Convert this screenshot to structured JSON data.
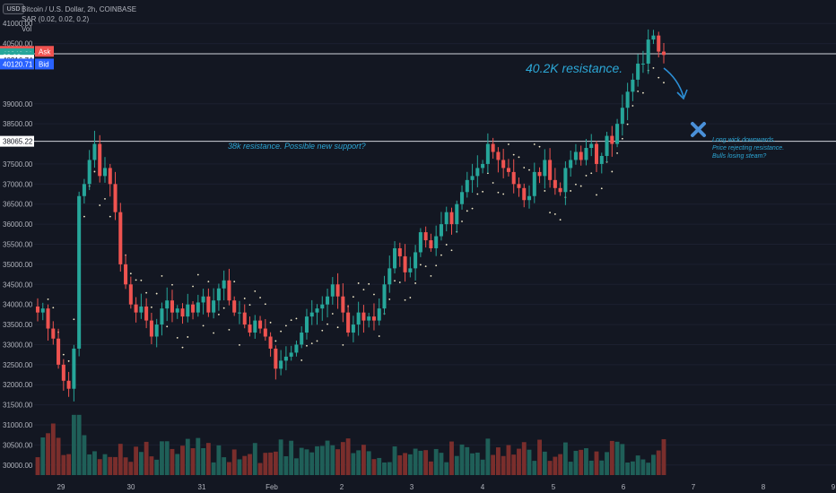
{
  "header": {
    "symbol_line": "Bitcoin / U.S. Dollar, 2h, COINBASE",
    "sar_line": "SAR (0.02, 0.02, 0.2)",
    "vol_line": "Vol",
    "currency_badge": "USD",
    "currency_prefix": "4"
  },
  "colors": {
    "background": "#131722",
    "up": "#26a69a",
    "down": "#ef5350",
    "sar_dots": "#f5eccb",
    "annotation": "#2ca7d6",
    "arrow": "#2c8fd6",
    "hline": "#d1d4dc"
  },
  "price_axis": {
    "ticks": [
      "41000.00",
      "40500.00",
      "39000.00",
      "38500.00",
      "37500.00",
      "37000.00",
      "36500.00",
      "36000.00",
      "35500.00",
      "35000.00",
      "34500.00",
      "34000.00",
      "33500.00",
      "33000.00",
      "32500.00",
      "32000.00",
      "31500.00",
      "31000.00",
      "30500.00",
      "30000.00"
    ],
    "labels": [
      {
        "text": "40306.44",
        "tag": "Ask",
        "color": "#ef5350",
        "price": 40306.44
      },
      {
        "text": "40246.01",
        "tag": "",
        "color": "#26a69a",
        "price": 40246.01
      },
      {
        "text": "23:02",
        "tag": "",
        "color": "#26a69a",
        "price": 40170.0
      },
      {
        "text": "40216.74",
        "tag": "",
        "color": "#ffffff",
        "price": 40085.0
      },
      {
        "text": "40120.71",
        "tag": "Bid",
        "color": "#2962ff",
        "price": 39990.0
      },
      {
        "text": "38065.22",
        "tag": "",
        "color": "#ffffff",
        "price": 38065.22
      }
    ]
  },
  "time_axis": {
    "ticks": [
      "29",
      "30",
      "31",
      "Feb",
      "2",
      "3",
      "4",
      "5",
      "6",
      "7",
      "8",
      "9"
    ]
  },
  "annotations": {
    "resistance_402": "40.2K resistance.",
    "resistance_38k": "38k resistance. Possible new support?",
    "note_line1": "Long wick downwards.",
    "note_line2": "Price rejecting resistance.",
    "note_line3": "Bulls losing steam?"
  },
  "chart_data": {
    "type": "candlestick",
    "symbol": "Bitcoin / U.S. Dollar",
    "interval": "2h",
    "exchange": "COINBASE",
    "ylim": [
      29750,
      41250
    ],
    "volume_scale": [
      29750,
      31250
    ],
    "horizontal_levels": [
      40246.01,
      38065.22
    ],
    "x_ticks": [
      "29",
      "30",
      "31",
      "Feb",
      "2",
      "3",
      "4",
      "5",
      "6",
      "7",
      "8",
      "9"
    ],
    "series": [
      {
        "name": "Price",
        "closes": [
          33800,
          33900,
          33400,
          33150,
          32500,
          32100,
          31900,
          32900,
          36700,
          37000,
          37600,
          38000,
          37200,
          37400,
          37000,
          36300,
          35000,
          34500,
          34000,
          33800,
          33950,
          33600,
          33200,
          33500,
          33900,
          34100,
          33800,
          33900,
          33700,
          34000,
          33800,
          34050,
          34200,
          33800,
          34100,
          34400,
          34600,
          34100,
          33800,
          33800,
          33500,
          33300,
          33600,
          33400,
          33200,
          32900,
          32400,
          32600,
          32700,
          32800,
          33000,
          33300,
          33700,
          33800,
          33900,
          34000,
          34200,
          34500,
          34200,
          33800,
          33300,
          33500,
          33800,
          33600,
          33700,
          33600,
          33900,
          34500,
          34900,
          35400,
          35200,
          34800,
          34900,
          35300,
          35800,
          35600,
          35400,
          35700,
          36000,
          36300,
          36000,
          36500,
          36800,
          37100,
          37200,
          37400,
          37500,
          38000,
          37800,
          37600,
          37400,
          37300,
          37000,
          36900,
          36600,
          36700,
          37300,
          37200,
          37600,
          37100,
          36900,
          36800,
          37400,
          37600,
          37800,
          37600,
          37900,
          38000,
          37500,
          37700,
          38200,
          38000,
          38500,
          38900,
          39300,
          39600,
          40000,
          40000,
          40600,
          40700,
          40300,
          40216
        ]
      }
    ]
  }
}
